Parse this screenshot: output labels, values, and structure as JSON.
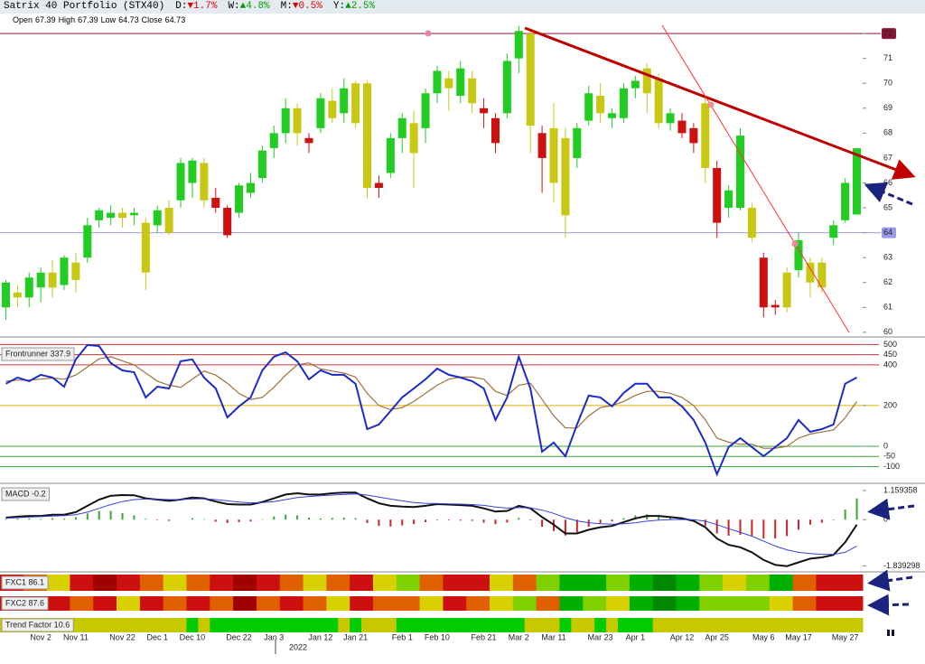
{
  "header": {
    "title": "Satrix 40 Portfolio (STX40)",
    "changes": [
      {
        "label": "D:",
        "value": "▼1.7%",
        "color": "#e00000"
      },
      {
        "label": "W:",
        "value": "▲4.8%",
        "color": "#00a000"
      },
      {
        "label": "M:",
        "value": "▼0.5%",
        "color": "#e00000"
      },
      {
        "label": "Y:",
        "value": "▲2.5%",
        "color": "#00a000"
      }
    ],
    "ohlc": [
      {
        "label": "Open",
        "value": 67.39
      },
      {
        "label": "High",
        "value": 67.39
      },
      {
        "label": "Low",
        "value": 64.73
      },
      {
        "label": "Close",
        "value": 64.73
      }
    ]
  },
  "chart_data": [
    {
      "type": "candlestick",
      "year_label": "2022",
      "categories": [
        null,
        null,
        null,
        "Nov 2",
        null,
        null,
        "Nov 11",
        null,
        null,
        null,
        "Nov 22",
        null,
        null,
        "Dec 1",
        null,
        null,
        "Dec 10",
        null,
        null,
        null,
        "Dec 22",
        null,
        null,
        "Jan 3",
        null,
        null,
        null,
        "Jan 12",
        null,
        null,
        "Jan 21",
        null,
        null,
        null,
        "Feb 1",
        null,
        null,
        "Feb 10",
        null,
        null,
        null,
        "Feb 21",
        null,
        null,
        "Mar 2",
        null,
        null,
        "Mar 11",
        null,
        null,
        null,
        "Mar 23",
        null,
        null,
        "Apr 1",
        null,
        null,
        null,
        "Apr 12",
        null,
        null,
        "Apr 25",
        null,
        null,
        null,
        "May 6",
        null,
        null,
        "May 17",
        null,
        null,
        null,
        "May 27",
        null
      ],
      "open": [
        61.0,
        61.6,
        61.4,
        61.8,
        62.4,
        61.9,
        62.8,
        63.0,
        64.5,
        64.6,
        64.8,
        64.7,
        64.4,
        64.3,
        65.0,
        65.3,
        66.0,
        66.8,
        65.4,
        65.0,
        64.8,
        65.6,
        66.2,
        67.4,
        68.0,
        69.0,
        67.8,
        68.2,
        69.3,
        68.8,
        70.0,
        70.0,
        66.0,
        66.4,
        67.8,
        68.4,
        68.2,
        69.6,
        70.2,
        69.5,
        70.2,
        69.0,
        68.6,
        68.8,
        71.0,
        72.0,
        68.0,
        68.2,
        67.8,
        67.0,
        68.5,
        69.5,
        68.6,
        68.6,
        69.8,
        70.6,
        70.2,
        68.4,
        68.5,
        68.2,
        69.2,
        66.6,
        65.0,
        65.0,
        65.0,
        63.0,
        61.0,
        61.0,
        62.5,
        62.8,
        62.8,
        63.8,
        64.5,
        67.39
      ],
      "high": [
        62.1,
        61.9,
        62.4,
        62.6,
        62.9,
        63.1,
        63.2,
        64.6,
        65.0,
        65.1,
        65.0,
        65.0,
        64.6,
        65.1,
        65.3,
        67.0,
        67.0,
        67.0,
        65.8,
        65.1,
        66.0,
        66.4,
        67.5,
        68.3,
        69.4,
        69.2,
        68.0,
        69.6,
        69.8,
        70.2,
        70.1,
        70.1,
        66.3,
        68.0,
        68.8,
        68.9,
        69.8,
        70.7,
        70.5,
        70.9,
        70.5,
        69.4,
        68.8,
        71.2,
        72.3,
        72.2,
        68.3,
        69.2,
        68.2,
        68.4,
        69.9,
        70.0,
        69.0,
        70.0,
        70.3,
        70.8,
        70.4,
        69.0,
        68.8,
        68.4,
        69.4,
        66.9,
        65.9,
        68.2,
        65.2,
        63.2,
        61.3,
        62.6,
        64.0,
        63.0,
        63.0,
        64.5,
        66.2,
        67.39
      ],
      "low": [
        60.5,
        61.0,
        61.0,
        61.2,
        61.4,
        61.7,
        61.6,
        62.8,
        64.2,
        64.3,
        64.2,
        64.3,
        61.7,
        64.0,
        63.9,
        65.0,
        65.4,
        65.0,
        64.8,
        63.8,
        64.6,
        65.4,
        66.0,
        67.0,
        67.6,
        67.5,
        67.2,
        68.0,
        68.4,
        68.4,
        68.2,
        65.4,
        65.4,
        66.2,
        67.2,
        65.8,
        67.6,
        69.2,
        68.9,
        69.2,
        68.8,
        68.2,
        67.2,
        68.6,
        70.4,
        67.2,
        65.6,
        65.2,
        63.8,
        66.6,
        68.3,
        68.4,
        68.2,
        68.4,
        69.4,
        68.8,
        68.2,
        68.1,
        67.8,
        67.2,
        66.0,
        63.8,
        64.6,
        64.9,
        63.6,
        60.6,
        60.7,
        60.8,
        62.2,
        61.4,
        61.6,
        63.5,
        64.4,
        64.73
      ],
      "close": [
        62.0,
        61.4,
        62.2,
        62.4,
        61.8,
        63.0,
        62.1,
        64.3,
        64.9,
        64.8,
        64.6,
        64.8,
        62.4,
        64.9,
        64.0,
        66.8,
        66.9,
        65.3,
        65.0,
        63.9,
        65.9,
        66.0,
        67.3,
        68.0,
        69.0,
        68.0,
        67.6,
        69.4,
        68.6,
        69.8,
        68.4,
        65.8,
        65.8,
        67.8,
        68.6,
        67.2,
        69.6,
        70.5,
        69.8,
        70.6,
        69.2,
        68.8,
        67.6,
        70.9,
        72.1,
        68.3,
        67.0,
        66.0,
        64.7,
        68.2,
        69.6,
        68.8,
        68.8,
        69.8,
        70.1,
        69.6,
        68.4,
        68.8,
        68.0,
        67.6,
        66.6,
        64.4,
        65.7,
        67.9,
        63.8,
        61.0,
        61.1,
        62.4,
        63.7,
        62.0,
        61.8,
        64.3,
        66.0,
        64.73
      ],
      "colors": [
        "#22cc22",
        "#c8c814",
        "#22cc22",
        "#22cc22",
        "#c8c814",
        "#22cc22",
        "#c8c814",
        "#22cc22",
        "#22cc22",
        "#22cc22",
        "#c8c814",
        "#22cc22",
        "#c8c814",
        "#22cc22",
        "#c8c814",
        "#22cc22",
        "#22cc22",
        "#c8c814",
        "#cc1111",
        "#cc1111",
        "#22cc22",
        "#22cc22",
        "#22cc22",
        "#22cc22",
        "#22cc22",
        "#c8c814",
        "#cc1111",
        "#22cc22",
        "#c8c814",
        "#22cc22",
        "#c8c814",
        "#c8c814",
        "#cc1111",
        "#22cc22",
        "#22cc22",
        "#c8c814",
        "#22cc22",
        "#22cc22",
        "#c8c814",
        "#22cc22",
        "#c8c814",
        "#cc1111",
        "#cc1111",
        "#22cc22",
        "#22cc22",
        "#c8c814",
        "#cc1111",
        "#c8c814",
        "#c8c814",
        "#22cc22",
        "#22cc22",
        "#c8c814",
        "#22cc22",
        "#22cc22",
        "#22cc22",
        "#c8c814",
        "#c8c814",
        "#22cc22",
        "#cc1111",
        "#cc1111",
        "#c8c814",
        "#cc1111",
        "#22cc22",
        "#22cc22",
        "#c8c814",
        "#cc1111",
        "#cc1111",
        "#c8c814",
        "#22cc22",
        "#c8c814",
        "#c8c814",
        "#22cc22",
        "#22cc22",
        "#22cc22"
      ],
      "ylim": [
        59.85,
        72.33
      ],
      "yticks": [
        60,
        61,
        62,
        63,
        64,
        65,
        66,
        67,
        68,
        69,
        70,
        71,
        72
      ],
      "levels": [
        {
          "value": 72,
          "color": "#8b1538"
        },
        {
          "value": 64,
          "color": "#9a9ae8"
        }
      ]
    },
    {
      "type": "line",
      "title": "Frontrunner 337.9",
      "series": [
        {
          "color": "#1a2bc8",
          "values": [
            307,
            338,
            320,
            351,
            338,
            293,
            427,
            498,
            493,
            409,
            373,
            364,
            240,
            293,
            284,
            418,
            427,
            338,
            284,
            142,
            196,
            240,
            373,
            440,
            462,
            418,
            329,
            373,
            351,
            351,
            307,
            84,
            107,
            173,
            240,
            284,
            329,
            382,
            351,
            338,
            320,
            284,
            129,
            240,
            440,
            284,
            -27,
            18,
            -49,
            107,
            249,
            240,
            196,
            262,
            307,
            307,
            240,
            240,
            196,
            129,
            18,
            -138,
            -4,
            40,
            -4,
            -49,
            -4,
            40,
            129,
            71,
            84,
            107,
            307,
            338
          ]
        },
        {
          "color": "#a0703c",
          "values": [
            320,
            325,
            325,
            330,
            335,
            330,
            350,
            390,
            430,
            440,
            420,
            400,
            360,
            320,
            300,
            290,
            330,
            370,
            350,
            310,
            260,
            230,
            240,
            290,
            350,
            400,
            410,
            380,
            370,
            360,
            340,
            260,
            200,
            180,
            190,
            220,
            260,
            300,
            330,
            340,
            340,
            330,
            270,
            250,
            300,
            310,
            230,
            150,
            90,
            90,
            150,
            190,
            200,
            220,
            250,
            270,
            270,
            260,
            240,
            200,
            130,
            40,
            20,
            10,
            10,
            -10,
            -10,
            0,
            40,
            60,
            70,
            80,
            140,
            220
          ]
        }
      ],
      "ylim": [
        -169,
        524
      ],
      "yticks": [
        500,
        450,
        400,
        200,
        0,
        -50,
        -100
      ],
      "levels": [
        {
          "value": 500,
          "color": "#cc3333"
        },
        {
          "value": 450,
          "color": "#cc3333"
        },
        {
          "value": 400,
          "color": "#cc3333"
        },
        {
          "value": 200,
          "color": "#d8b000"
        },
        {
          "value": 0,
          "color": "#33aa33"
        },
        {
          "value": -50,
          "color": "#33aa33"
        },
        {
          "value": -100,
          "color": "#33aa33"
        }
      ]
    },
    {
      "type": "macd",
      "title": "MACD -0.2",
      "series": [
        {
          "color": "#111111",
          "values": [
            0.08,
            0.12,
            0.15,
            0.15,
            0.2,
            0.2,
            0.3,
            0.55,
            0.8,
            0.95,
            0.98,
            0.97,
            0.85,
            0.8,
            0.75,
            0.8,
            0.88,
            0.85,
            0.72,
            0.62,
            0.6,
            0.6,
            0.7,
            0.85,
            1.0,
            1.05,
            1.0,
            1.0,
            1.05,
            1.08,
            1.08,
            0.85,
            0.65,
            0.55,
            0.52,
            0.5,
            0.55,
            0.62,
            0.6,
            0.58,
            0.55,
            0.45,
            0.32,
            0.35,
            0.55,
            0.45,
            0.1,
            -0.2,
            -0.55,
            -0.55,
            -0.4,
            -0.3,
            -0.25,
            -0.1,
            0.05,
            0.15,
            0.15,
            0.1,
            0.05,
            -0.05,
            -0.3,
            -0.75,
            -1.0,
            -1.1,
            -1.3,
            -1.6,
            -1.8,
            -1.85,
            -1.7,
            -1.55,
            -1.5,
            -1.4,
            -0.9,
            -0.2
          ]
        },
        {
          "color": "#3344dd",
          "values": [
            0.05,
            0.08,
            0.1,
            0.12,
            0.14,
            0.16,
            0.2,
            0.3,
            0.45,
            0.6,
            0.72,
            0.8,
            0.82,
            0.82,
            0.8,
            0.8,
            0.82,
            0.83,
            0.8,
            0.75,
            0.7,
            0.67,
            0.68,
            0.72,
            0.8,
            0.88,
            0.92,
            0.95,
            0.98,
            1.0,
            1.02,
            0.98,
            0.9,
            0.82,
            0.75,
            0.68,
            0.65,
            0.64,
            0.63,
            0.62,
            0.6,
            0.57,
            0.5,
            0.46,
            0.48,
            0.47,
            0.38,
            0.25,
            0.08,
            -0.05,
            -0.12,
            -0.16,
            -0.18,
            -0.16,
            -0.12,
            -0.06,
            -0.02,
            0.0,
            0.01,
            0.0,
            -0.06,
            -0.2,
            -0.36,
            -0.5,
            -0.66,
            -0.85,
            -1.05,
            -1.2,
            -1.3,
            -1.35,
            -1.38,
            -1.38,
            -1.3,
            -1.05
          ]
        }
      ],
      "histogram": [
        0.03,
        0.04,
        0.05,
        0.03,
        0.06,
        0.04,
        0.1,
        0.25,
        0.35,
        0.35,
        0.26,
        0.17,
        0.03,
        -0.02,
        -0.05,
        0,
        0.06,
        0.02,
        -0.08,
        -0.13,
        -0.1,
        -0.07,
        0.02,
        0.13,
        0.2,
        0.17,
        0.08,
        0.05,
        0.07,
        0.08,
        0.06,
        -0.13,
        -0.25,
        -0.27,
        -0.23,
        -0.18,
        -0.1,
        -0.02,
        -0.03,
        -0.04,
        -0.05,
        -0.12,
        -0.18,
        -0.11,
        0.07,
        -0.02,
        -0.28,
        -0.45,
        -0.63,
        -0.5,
        -0.28,
        -0.14,
        -0.07,
        0.06,
        0.17,
        0.21,
        0.17,
        0.1,
        0.04,
        -0.05,
        -0.24,
        -0.55,
        -0.64,
        -0.6,
        -0.64,
        -0.75,
        -0.75,
        -0.65,
        -0.4,
        -0.2,
        -0.12,
        -0.02,
        0.4,
        0.85
      ],
      "ylim": [
        -2.04,
        1.23
      ],
      "yticks": [
        1.159358,
        0,
        -1.839298
      ]
    },
    {
      "type": "heatstrip",
      "title": "FXC1 86.1",
      "colors": [
        "#cc1010",
        "#e06000",
        "#d8d000",
        "#cc1010",
        "#a00000",
        "#cc1010",
        "#e06000",
        "#d8d000",
        "#e06000",
        "#cc1010",
        "#a00000",
        "#cc1010",
        "#e06000",
        "#d8d000",
        "#e06000",
        "#cc1010",
        "#d8d000",
        "#80d000",
        "#e06000",
        "#cc1010",
        "#cc1010",
        "#d8d000",
        "#e06000",
        "#80d000",
        "#00b000",
        "#00b000",
        "#80d000",
        "#00b000",
        "#008800",
        "#00b000",
        "#80d000",
        "#d8d000",
        "#80d000",
        "#00b000",
        "#e06000",
        "#cc1010",
        "#cc1010"
      ]
    },
    {
      "type": "heatstrip",
      "title": "FXC2 87.6",
      "colors": [
        "#cc1010",
        "#a00000",
        "#cc1010",
        "#e06000",
        "#cc1010",
        "#d8d000",
        "#cc1010",
        "#e06000",
        "#cc1010",
        "#e06000",
        "#a00000",
        "#e06000",
        "#cc1010",
        "#e06000",
        "#d8d000",
        "#cc1010",
        "#e06000",
        "#e06000",
        "#d8d000",
        "#cc1010",
        "#e06000",
        "#d8d000",
        "#80d000",
        "#e06000",
        "#00b000",
        "#80d000",
        "#d8d000",
        "#00b000",
        "#008800",
        "#00b000",
        "#80d000",
        "#80d000",
        "#80d000",
        "#d8d000",
        "#e06000",
        "#cc1010",
        "#cc1010"
      ]
    },
    {
      "type": "heatstrip",
      "title": "Trend Factor 10.6",
      "colors": [
        "#c8c800",
        "#c8c800",
        "#c8c800",
        "#c8c800",
        "#c8c800",
        "#c8c800",
        "#c8c800",
        "#c8c800",
        "#c8c800",
        "#c8c800",
        "#c8c800",
        "#c8c800",
        "#c8c800",
        "#c8c800",
        "#c8c800",
        "#c8c800",
        "#00cc00",
        "#c8c800",
        "#00cc00",
        "#00cc00",
        "#00cc00",
        "#00cc00",
        "#00cc00",
        "#00cc00",
        "#00cc00",
        "#00cc00",
        "#00cc00",
        "#00cc00",
        "#00cc00",
        "#c8c800",
        "#00cc00",
        "#c8c800",
        "#c8c800",
        "#c8c800",
        "#00cc00",
        "#00cc00",
        "#00cc00",
        "#00cc00",
        "#00cc00",
        "#00cc00",
        "#00cc00",
        "#00cc00",
        "#00cc00",
        "#00cc00",
        "#00cc00",
        "#c8c800",
        "#c8c800",
        "#c8c800",
        "#00cc00",
        "#c8c800",
        "#c8c800",
        "#00cc00",
        "#c8c800",
        "#00cc00",
        "#00cc00",
        "#00cc00",
        "#c8c800",
        "#c8c800",
        "#c8c800",
        "#c8c800",
        "#c8c800",
        "#c8c800",
        "#c8c800",
        "#c8c800",
        "#c8c800",
        "#c8c800",
        "#c8c800",
        "#c8c800",
        "#c8c800",
        "#c8c800",
        "#c8c800",
        "#c8c800",
        "#c8c800",
        "#c8c800"
      ]
    }
  ]
}
